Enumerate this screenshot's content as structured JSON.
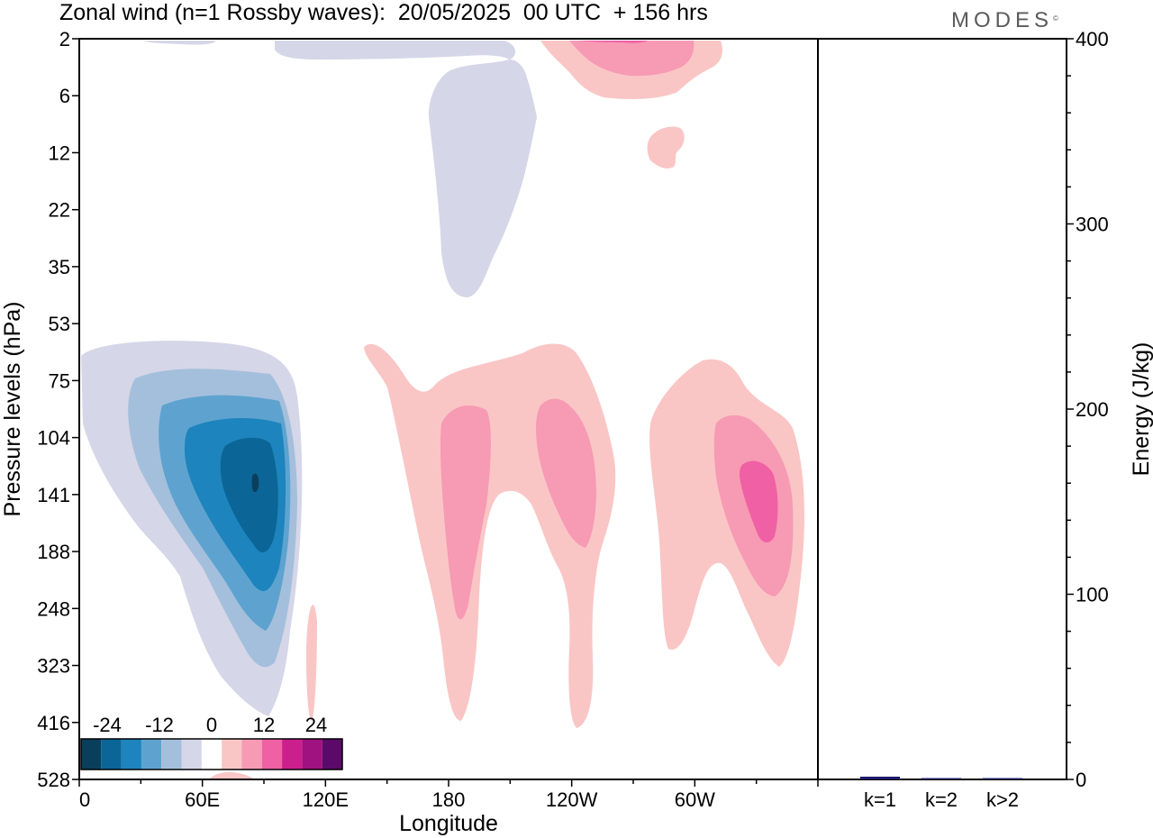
{
  "header": {
    "title": "Zonal wind (n=1 Rossby waves):  20/05/2025  00 UTC  + 156 hrs",
    "logo": "MODES",
    "logo_mark": "©"
  },
  "chart_data": [
    {
      "type": "heatmap",
      "subtype": "filled-contour",
      "xlabel": "Longitude",
      "ylabel": "Pressure levels (hPa)",
      "x_ticks": [
        "0",
        "60E",
        "120E",
        "180",
        "120W",
        "60W"
      ],
      "x_tick_degrees": [
        0,
        60,
        120,
        180,
        240,
        300
      ],
      "xlim_degrees": [
        0,
        360
      ],
      "y_ticks": [
        "2",
        "6",
        "12",
        "22",
        "35",
        "53",
        "75",
        "104",
        "141",
        "188",
        "248",
        "323",
        "416",
        "528"
      ],
      "y_axis_inverted": true,
      "colorbar": {
        "tick_labels": [
          "-24",
          "-12",
          "0",
          "12",
          "24"
        ],
        "levels": [
          -30,
          -25,
          -20,
          -15,
          -10,
          -5,
          0,
          5,
          10,
          15,
          20,
          25,
          30
        ],
        "colors": [
          "#0a3f5c",
          "#0b6597",
          "#1d84bd",
          "#5ea3cf",
          "#a4bfdc",
          "#d5d6e8",
          "#ffffff",
          "#f9c6c5",
          "#f79ab4",
          "#f060a4",
          "#cc1f8e",
          "#a0127f",
          "#5b0a6a"
        ]
      },
      "features": [
        {
          "name": "easterly maximum",
          "longitude_deg": 84,
          "pressure_hPa": 141,
          "min_value": -25
        },
        {
          "name": "westerly maximum near 60W",
          "longitude_deg": 315,
          "pressure_hPa": 141,
          "max_value": 15
        }
      ]
    },
    {
      "type": "bar",
      "categories": [
        "k=1",
        "k=2",
        "k>2"
      ],
      "values": [
        1.5,
        0.4,
        0.6
      ],
      "ylabel": "Energy (J/kg)",
      "y_ticks": [
        "0",
        "100",
        "200",
        "300",
        "400"
      ],
      "ylim": [
        0,
        400
      ],
      "y_axis_side": "right",
      "bar_color": "#1b1b6e"
    }
  ]
}
